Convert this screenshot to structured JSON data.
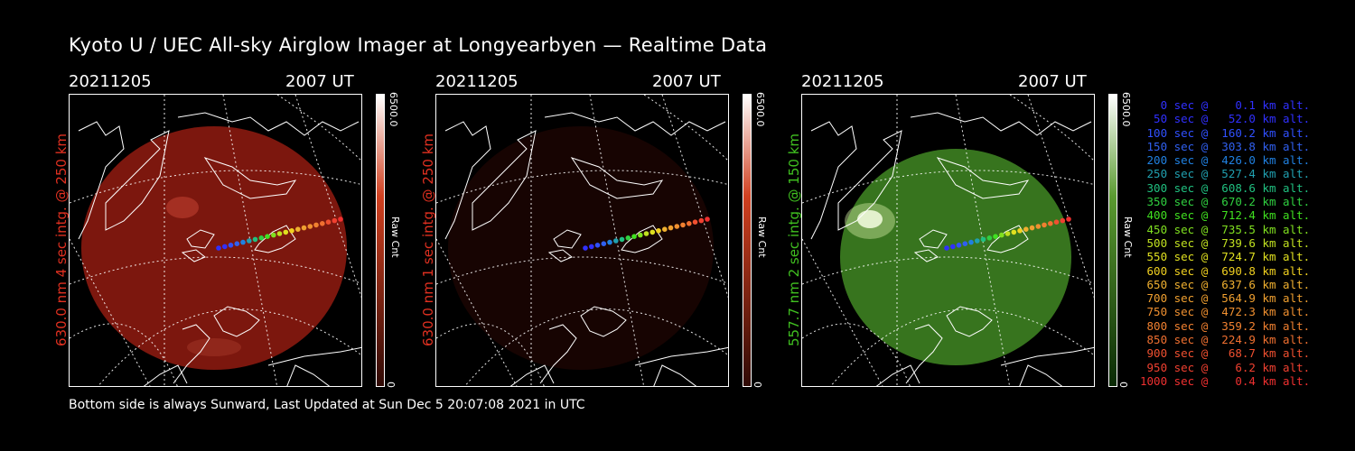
{
  "title": "Kyoto U / UEC All-sky Airglow Imager at Longyearbyen — Realtime Data",
  "footer": "Bottom side is always Sunward, Last Updated at Sun Dec  5 20:07:08 2021 in UTC",
  "panels": [
    {
      "date": "20211205",
      "time": "2007 UT",
      "label": "630.0 nm 4 sec intg. @ 250 km",
      "label_color": "#e03020",
      "cbar_max": "6500.0",
      "cbar_min": "0",
      "cbar_unit": "Raw Cnt",
      "image_color": "#8a1a10",
      "image_brightness": 0.9,
      "colormap": "red"
    },
    {
      "date": "20211205",
      "time": "2007 UT",
      "label": "630.0 nm 1 sec intg. @ 250 km",
      "label_color": "#e03020",
      "cbar_max": "6500.0",
      "cbar_min": "0",
      "cbar_unit": "Raw Cnt",
      "image_color": "#3a0a05",
      "image_brightness": 0.4,
      "colormap": "red"
    },
    {
      "date": "20211205",
      "time": "2007 UT",
      "label": "557.7 nm 2 sec intg. @ 150 km",
      "label_color": "#40c020",
      "cbar_max": "6500.0",
      "cbar_min": "0",
      "cbar_unit": "Raw Cnt",
      "image_color": "#3a7a20",
      "image_brightness": 1.0,
      "colormap": "green"
    }
  ],
  "legend": [
    {
      "text": "   0 sec @    0.1 km alt.",
      "color": "#3030ff"
    },
    {
      "text": "  50 sec @   52.0 km alt.",
      "color": "#3030ff"
    },
    {
      "text": " 100 sec @  160.2 km alt.",
      "color": "#3050ff"
    },
    {
      "text": " 150 sec @  303.8 km alt.",
      "color": "#3060f0"
    },
    {
      "text": " 200 sec @  426.0 km alt.",
      "color": "#2080e0"
    },
    {
      "text": " 250 sec @  527.4 km alt.",
      "color": "#20a0b0"
    },
    {
      "text": " 300 sec @  608.6 km alt.",
      "color": "#20c080"
    },
    {
      "text": " 350 sec @  670.2 km alt.",
      "color": "#30d040"
    },
    {
      "text": " 400 sec @  712.4 km alt.",
      "color": "#40e020"
    },
    {
      "text": " 450 sec @  735.5 km alt.",
      "color": "#80e020"
    },
    {
      "text": " 500 sec @  739.6 km alt.",
      "color": "#c0e020"
    },
    {
      "text": " 550 sec @  724.7 km alt.",
      "color": "#e0e020"
    },
    {
      "text": " 600 sec @  690.8 km alt.",
      "color": "#f0d020"
    },
    {
      "text": " 650 sec @  637.6 km alt.",
      "color": "#f0b030"
    },
    {
      "text": " 700 sec @  564.9 km alt.",
      "color": "#f0a030"
    },
    {
      "text": " 750 sec @  472.3 km alt.",
      "color": "#f09030"
    },
    {
      "text": " 800 sec @  359.2 km alt.",
      "color": "#f08030"
    },
    {
      "text": " 850 sec @  224.9 km alt.",
      "color": "#f07030"
    },
    {
      "text": " 900 sec @   68.7 km alt.",
      "color": "#f05030"
    },
    {
      "text": " 950 sec @    6.2 km alt.",
      "color": "#f04030"
    },
    {
      "text": "1000 sec @    0.4 km alt.",
      "color": "#f03030"
    }
  ]
}
